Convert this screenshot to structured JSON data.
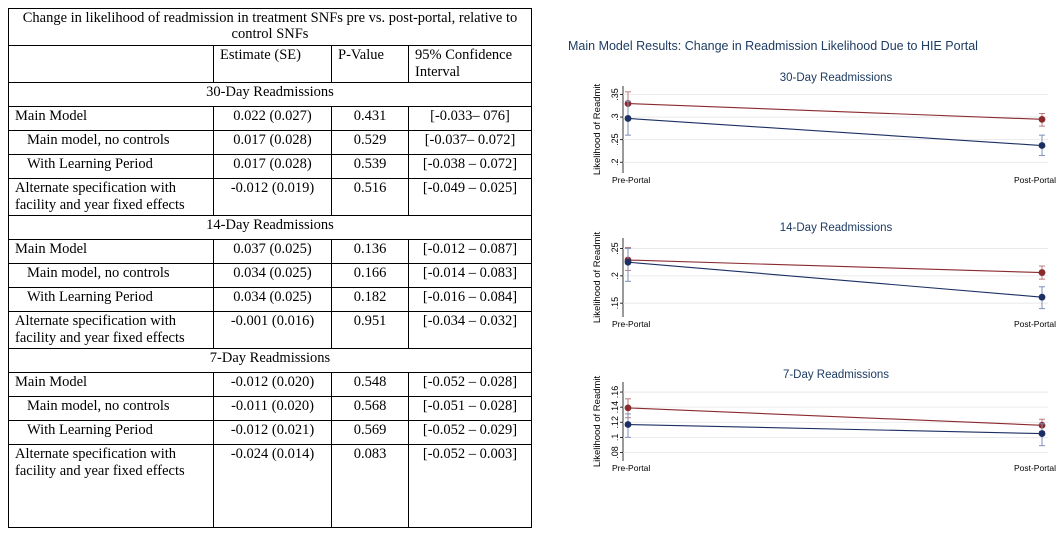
{
  "table": {
    "title": "Change in likelihood of readmission in treatment SNFs pre vs. post-portal, relative to control SNFs",
    "headers": [
      "",
      "Estimate (SE)",
      "P-Value",
      "95% Confidence Interval"
    ],
    "sections": [
      {
        "name": "30-Day Readmissions",
        "rows": [
          {
            "label": "Main Model",
            "estimate": "0.022 (0.027)",
            "p": "0.431",
            "ci": "[-0.033– 076]"
          },
          {
            "label": "Main model, no controls",
            "estimate": "0.017 (0.028)",
            "p": "0.529",
            "ci": "[-0.037– 0.072]"
          },
          {
            "label": "With Learning Period",
            "estimate": "0.017 (0.028)",
            "p": "0.539",
            "ci": "[-0.038 – 0.072]"
          },
          {
            "label": "Alternate specification with facility and year fixed effects",
            "estimate": "-0.012 (0.019)",
            "p": "0.516",
            "ci": "[-0.049 – 0.025]"
          }
        ]
      },
      {
        "name": "14-Day Readmissions",
        "rows": [
          {
            "label": "Main Model",
            "estimate": "0.037 (0.025)",
            "p": "0.136",
            "ci": "[-0.012 – 0.087]"
          },
          {
            "label": "Main model, no controls",
            "estimate": "0.034 (0.025)",
            "p": "0.166",
            "ci": "[-0.014 – 0.083]"
          },
          {
            "label": "With Learning Period",
            "estimate": "0.034 (0.025)",
            "p": "0.182",
            "ci": "[-0.016 – 0.084]"
          },
          {
            "label": "Alternate specification with facility and year fixed effects",
            "estimate": "-0.001 (0.016)",
            "p": "0.951",
            "ci": "[-0.034 – 0.032]"
          }
        ]
      },
      {
        "name": "7-Day Readmissions",
        "rows": [
          {
            "label": "Main Model",
            "estimate": "-0.012 (0.020)",
            "p": "0.548",
            "ci": "[-0.052 – 0.028]"
          },
          {
            "label": "Main model, no controls",
            "estimate": "-0.011 (0.020)",
            "p": "0.568",
            "ci": "[-0.051 – 0.028]"
          },
          {
            "label": "With Learning Period",
            "estimate": "-0.012 (0.021)",
            "p": "0.569",
            "ci": "[-0.052 – 0.029]"
          },
          {
            "label": "Alternate specification with facility and year fixed effects",
            "estimate": "-0.024 (0.014)",
            "p": "0.083",
            "ci": "[-0.052 – 0.003]"
          }
        ]
      }
    ]
  },
  "colors": {
    "title_blue": "#1d3c62",
    "series_red": "#8b2a2e",
    "series_blue": "#1b2f63",
    "ci_red": "#b87c7e",
    "ci_blue": "#7f8fb7",
    "grid": "#e6e6e6"
  },
  "chart_data": {
    "type": "line",
    "title": "Main Model Results: Change in Readmission Likelihood Due to HIE Portal",
    "panels": [
      {
        "title": "30-Day Readmissions",
        "ylabel": "Likelihood of Readmit",
        "categories": [
          "Pre-Portal",
          "Post-Portal"
        ],
        "ylim": [
          0.185,
          0.36
        ],
        "yticks": [
          0.2,
          0.25,
          0.3,
          0.35
        ],
        "ytick_labels": [
          ".2",
          ".25",
          ".3",
          ".35"
        ],
        "series": [
          {
            "color_key": "series_red",
            "values": [
              0.33,
              0.295
            ],
            "ci_low": [
              0.3,
              0.28
            ],
            "ci_high": [
              0.356,
              0.308
            ]
          },
          {
            "color_key": "series_blue",
            "values": [
              0.297,
              0.237
            ],
            "ci_low": [
              0.26,
              0.215
            ],
            "ci_high": [
              0.335,
              0.26
            ]
          }
        ]
      },
      {
        "title": "14-Day Readmissions",
        "ylabel": "Likelihood of Readmit",
        "categories": [
          "Pre-Portal",
          "Post-Portal"
        ],
        "ylim": [
          0.132,
          0.262
        ],
        "yticks": [
          0.15,
          0.2,
          0.25
        ],
        "ytick_labels": [
          ".15",
          ".2",
          ".25"
        ],
        "series": [
          {
            "color_key": "series_red",
            "values": [
              0.229,
              0.206
            ],
            "ci_low": [
              0.21,
              0.194
            ],
            "ci_high": [
              0.252,
              0.218
            ]
          },
          {
            "color_key": "series_blue",
            "values": [
              0.225,
              0.161
            ],
            "ci_low": [
              0.19,
              0.14
            ],
            "ci_high": [
              0.25,
              0.18
            ]
          }
        ]
      },
      {
        "title": "7-Day Readmissions",
        "ylabel": "Likelihood of Readmit",
        "categories": [
          "Pre-Portal",
          "Post-Portal"
        ],
        "ylim": [
          0.074,
          0.168
        ],
        "yticks": [
          0.08,
          0.1,
          0.12,
          0.14,
          0.16
        ],
        "ytick_labels": [
          ".08",
          ".1",
          ".12",
          ".14",
          ".16"
        ],
        "series": [
          {
            "color_key": "series_red",
            "values": [
              0.139,
              0.116
            ],
            "ci_low": [
              0.126,
              0.108
            ],
            "ci_high": [
              0.151,
              0.124
            ]
          },
          {
            "color_key": "series_blue",
            "values": [
              0.117,
              0.105
            ],
            "ci_low": [
              0.1,
              0.089
            ],
            "ci_high": [
              0.131,
              0.118
            ]
          }
        ]
      }
    ]
  }
}
